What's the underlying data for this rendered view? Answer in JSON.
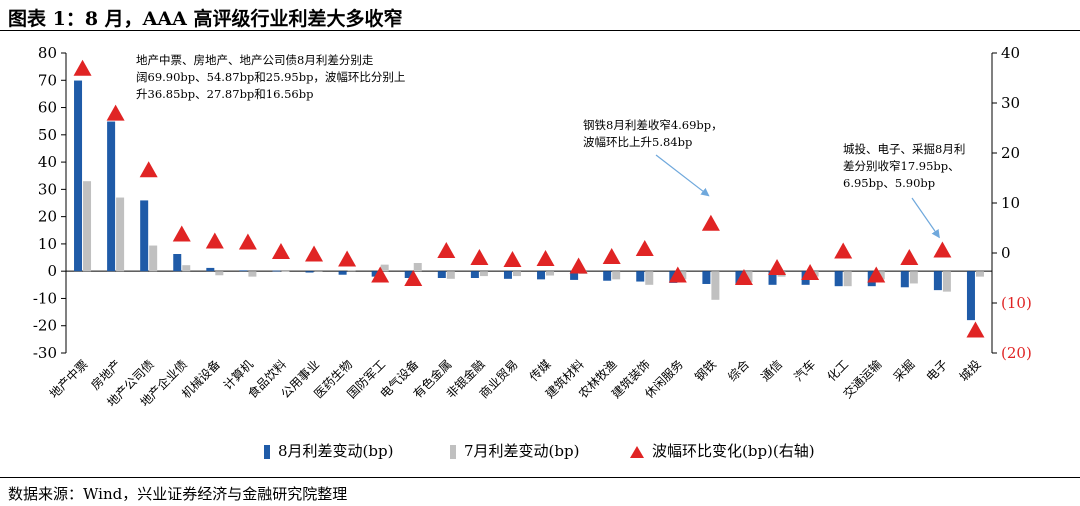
{
  "title": "图表 1：8 月，AAA 高评级行业利差大多收窄",
  "source": "数据来源：Wind，兴业证券经济与金融研究院整理",
  "colors": {
    "aug": "#1f5ba8",
    "jul": "#c0c0c0",
    "triangle": "#e02424",
    "neg_axis": "#e02424",
    "arrow": "#6fa8dc"
  },
  "annotations": {
    "a1": [
      "地产中票、房地产、地产公司债8月利差分别走",
      "阔69.90bp、54.87bp和25.95bp，波幅环比分别上",
      "升36.85bp、27.87bp和16.56bp"
    ],
    "a2": [
      "钢铁8月利差收窄4.69bp，",
      "波幅环比上升5.84bp"
    ],
    "a3": [
      "城投、电子、采掘8月利",
      "差分别收窄17.95bp、",
      "6.95bp、5.90bp"
    ]
  },
  "legend": [
    "8月利差变动(bp)",
    "7月利差变动(bp)",
    "波幅环比变化(bp)(右轴)"
  ],
  "chart_data": {
    "type": "bar",
    "categories": [
      "地产中票",
      "房地产",
      "地产公司债",
      "地产企业债",
      "机械设备",
      "计算机",
      "食品饮料",
      "公用事业",
      "医药生物",
      "国防军工",
      "电气设备",
      "有色金属",
      "非银金融",
      "商业贸易",
      "传媒",
      "建筑材料",
      "农林牧渔",
      "建筑装饰",
      "休闲服务",
      "钢铁",
      "综合",
      "通信",
      "汽车",
      "化工",
      "交通运输",
      "采掘",
      "电子",
      "城投"
    ],
    "series": [
      {
        "name": "8月利差变动(bp)",
        "axis": "left",
        "values": [
          69.9,
          54.87,
          25.95,
          6.3,
          1.2,
          0.3,
          0.2,
          -0.5,
          -1.3,
          -2.0,
          -2.5,
          -2.5,
          -2.5,
          -2.8,
          -3.0,
          -3.2,
          -3.5,
          -3.8,
          -4.3,
          -4.69,
          -4.8,
          -5.0,
          -5.0,
          -5.5,
          -5.5,
          -5.9,
          -6.95,
          -17.95
        ]
      },
      {
        "name": "7月利差变动(bp)",
        "axis": "left",
        "values": [
          33.0,
          27.0,
          9.4,
          2.2,
          -1.5,
          -2.0,
          0.1,
          0.0,
          0.4,
          2.4,
          3.0,
          -2.8,
          -1.8,
          -1.8,
          -1.6,
          -1.0,
          -3.0,
          -5.0,
          -3.0,
          -10.5,
          -4.0,
          -2.0,
          -2.0,
          -5.5,
          -3.0,
          -4.5,
          -7.5,
          -2.0
        ]
      },
      {
        "name": "波幅环比变化(bp)(右轴)",
        "axis": "right",
        "type": "scatter",
        "values": [
          36.85,
          27.87,
          16.56,
          3.7,
          2.3,
          2.1,
          0.2,
          -0.3,
          -1.3,
          -4.5,
          -5.2,
          0.4,
          -1.0,
          -1.4,
          -1.2,
          -2.7,
          -0.8,
          0.8,
          -4.5,
          5.84,
          -5.0,
          -3.0,
          -4.0,
          0.3,
          -4.5,
          -1.0,
          0.5,
          -15.5
        ]
      }
    ],
    "ylim_left": [
      -30,
      80
    ],
    "yticks_left": [
      "80",
      "70",
      "60",
      "50",
      "40",
      "30",
      "20",
      "10",
      "0",
      "-10",
      "-20",
      "-30"
    ],
    "ylim_right": [
      -20,
      40
    ],
    "yticks_right": [
      "40",
      "30",
      "20",
      "10",
      "0",
      "(10)",
      "(20)"
    ],
    "grid": false,
    "legend_position": "bottom"
  }
}
